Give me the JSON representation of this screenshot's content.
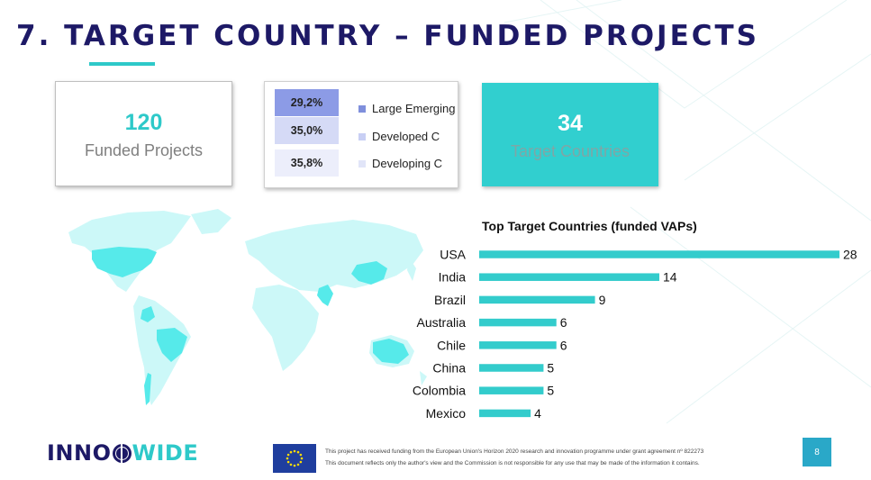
{
  "title": "7. TARGET COUNTRY – FUNDED PROJECTS",
  "cards": {
    "projects": {
      "number": "120",
      "label": "Funded Projects"
    },
    "countries": {
      "number": "34",
      "label": "Target Countries"
    }
  },
  "category_legend": [
    {
      "percent": "29,2%",
      "label": "Large Emerging",
      "cell_color": "#8c9be6",
      "swatch_color": "#7f8fdc"
    },
    {
      "percent": "35,0%",
      "label": "Developed C",
      "cell_color": "#d5daf6",
      "swatch_color": "#c8cff4"
    },
    {
      "percent": "35,8%",
      "label": "Developing C",
      "cell_color": "#eceefb",
      "swatch_color": "#e1e5f8"
    }
  ],
  "chart_data": {
    "type": "bar",
    "orientation": "horizontal",
    "title": "Top Target Countries (funded VAPs)",
    "categories": [
      "USA",
      "India",
      "Brazil",
      "Australia",
      "Chile",
      "China",
      "Colombia",
      "Mexico"
    ],
    "values": [
      28,
      14,
      9,
      6,
      6,
      5,
      5,
      4
    ],
    "bar_color": "#33cccc",
    "xlim": [
      0,
      28
    ],
    "xlabel": "",
    "ylabel": ""
  },
  "footer": {
    "logo_part1": "INNO",
    "logo_part2": "WIDE",
    "funding_line": "This project has received funding from the European Union's Horizon 2020 research and innovation programme under grant agreement nº 822273",
    "disclaimer_line": "This document reflects only the author's view and the Commission is not responsible for any use that may be made of the information it contains.",
    "page_number": "8"
  }
}
